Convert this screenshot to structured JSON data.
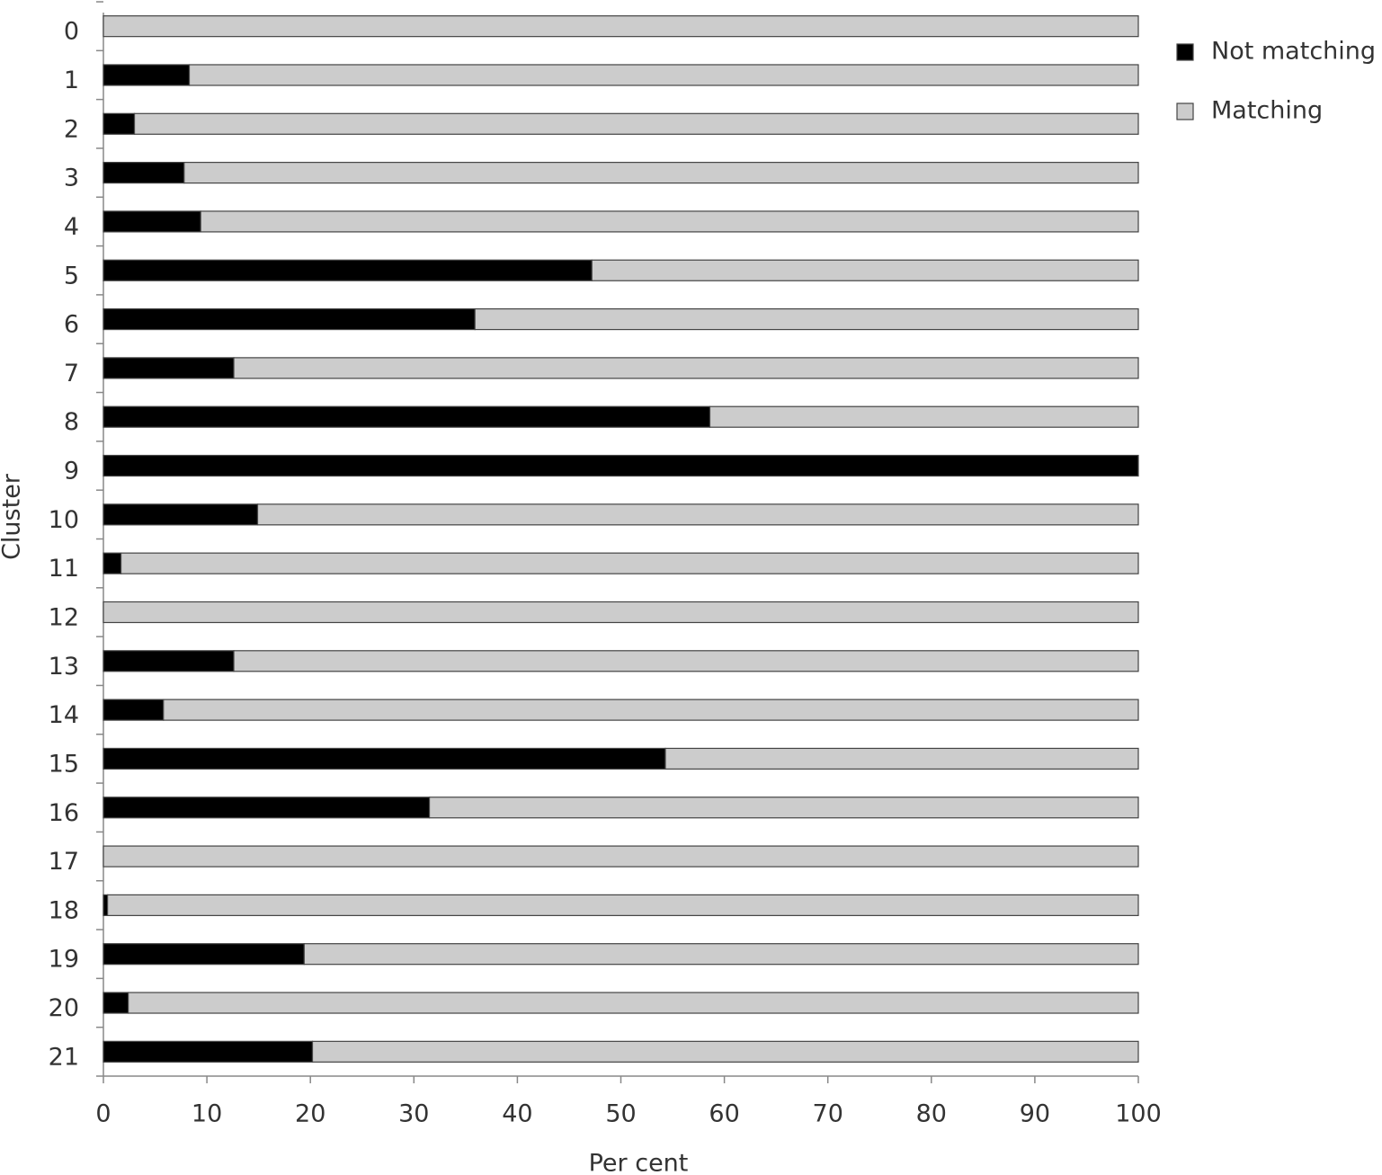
{
  "chart_data": {
    "type": "stacked-bar-horizontal",
    "x_label": "Per cent",
    "y_label": "Cluster",
    "categories": [
      "0",
      "1",
      "2",
      "3",
      "4",
      "5",
      "6",
      "7",
      "8",
      "9",
      "10",
      "11",
      "12",
      "13",
      "14",
      "15",
      "16",
      "17",
      "18",
      "19",
      "20",
      "21"
    ],
    "series": [
      {
        "name": "Not matching",
        "color": "#000000",
        "values": [
          0,
          8.3,
          3.0,
          7.8,
          9.4,
          47.2,
          35.9,
          12.6,
          58.6,
          100,
          14.9,
          1.7,
          0,
          12.6,
          5.8,
          54.3,
          31.5,
          0,
          0.4,
          19.4,
          2.4,
          20.2
        ]
      },
      {
        "name": "Matching",
        "color": "#cccccc",
        "values": [
          100,
          91.7,
          97.0,
          92.2,
          90.6,
          52.8,
          64.1,
          87.4,
          41.4,
          0,
          85.1,
          98.3,
          100,
          87.4,
          94.2,
          45.7,
          68.5,
          100,
          99.6,
          80.6,
          97.6,
          79.8
        ]
      }
    ],
    "xlim": [
      0,
      100
    ],
    "xticks": [
      0,
      10,
      20,
      30,
      40,
      50,
      60,
      70,
      80,
      90,
      100
    ],
    "legend": "right"
  }
}
